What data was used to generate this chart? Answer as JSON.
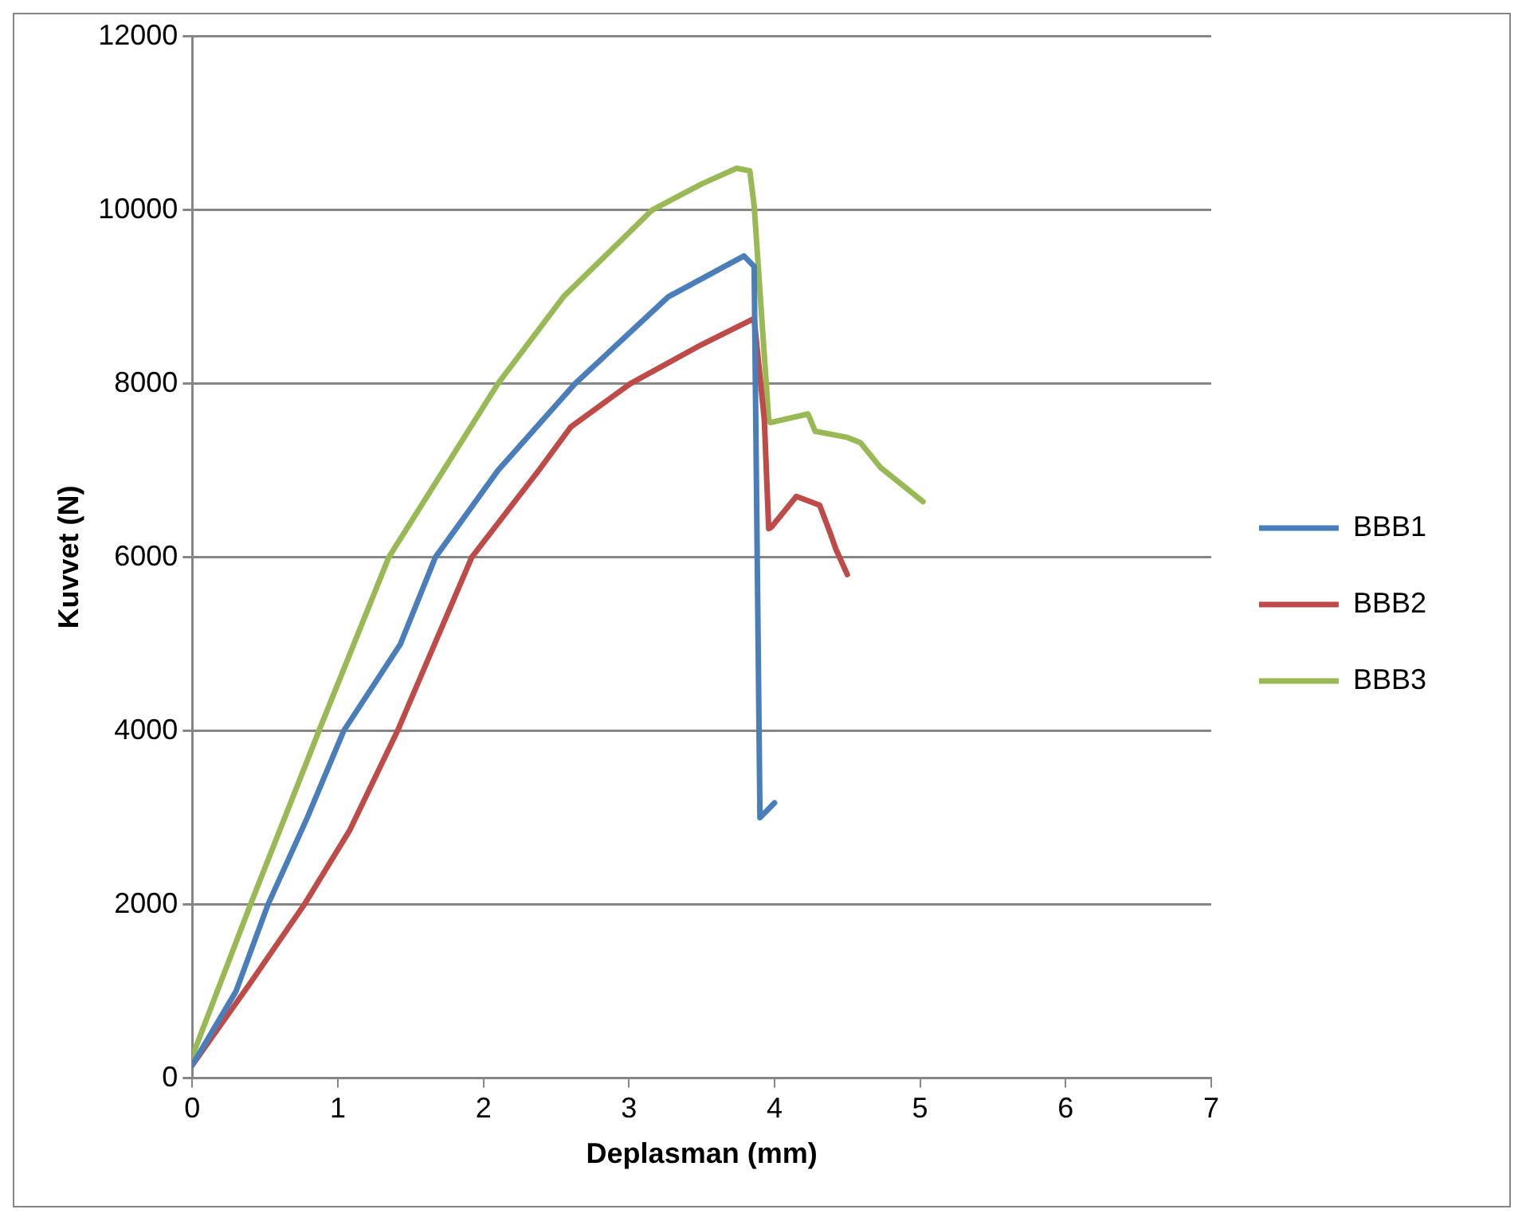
{
  "chart_data": {
    "type": "line",
    "xlabel": "Deplasman (mm)",
    "ylabel": "Kuvvet (N)",
    "xlim": [
      0,
      7
    ],
    "xticks": [
      0,
      1,
      2,
      3,
      4,
      5,
      6,
      7
    ],
    "ylim": [
      0,
      12000
    ],
    "yticks": [
      0,
      2000,
      4000,
      6000,
      8000,
      10000,
      12000
    ],
    "grid": "y",
    "legend": "right",
    "marker": "none",
    "line_style": "solid",
    "series": [
      {
        "name": "BBB1",
        "color": "#4a7ebb",
        "x": [
          0,
          0.3,
          0.52,
          0.79,
          1.04,
          1.43,
          1.67,
          2.1,
          2.63,
          3.27,
          3.79,
          3.86,
          3.9,
          4.0
        ],
        "values": [
          150,
          1000,
          2000,
          3000,
          4000,
          5000,
          6000,
          7000,
          8000,
          9000,
          9470,
          9350,
          3000,
          3170
        ]
      },
      {
        "name": "BBB2",
        "color": "#be4b48",
        "x": [
          0,
          0.4,
          0.77,
          1.08,
          1.41,
          1.92,
          2.38,
          2.6,
          3.01,
          3.5,
          3.86,
          3.93,
          3.96,
          3.98,
          4.15,
          4.31,
          4.38,
          4.42,
          4.5
        ],
        "values": [
          150,
          1100,
          2000,
          2850,
          4000,
          6000,
          7000,
          7500,
          8000,
          8450,
          8750,
          7580,
          6330,
          6350,
          6700,
          6600,
          6290,
          6100,
          5800
        ]
      },
      {
        "name": "BBB3",
        "color": "#98b954",
        "x": [
          0,
          0.4,
          0.87,
          1.35,
          2.1,
          2.55,
          3.16,
          3.5,
          3.74,
          3.83,
          3.86,
          3.96,
          3.97,
          4.23,
          4.28,
          4.5,
          4.59,
          4.73,
          5.02
        ],
        "values": [
          250,
          2000,
          4000,
          6000,
          8000,
          9000,
          10000,
          10300,
          10480,
          10450,
          10050,
          7580,
          7550,
          7650,
          7450,
          7380,
          7320,
          7030,
          6640
        ]
      }
    ]
  }
}
